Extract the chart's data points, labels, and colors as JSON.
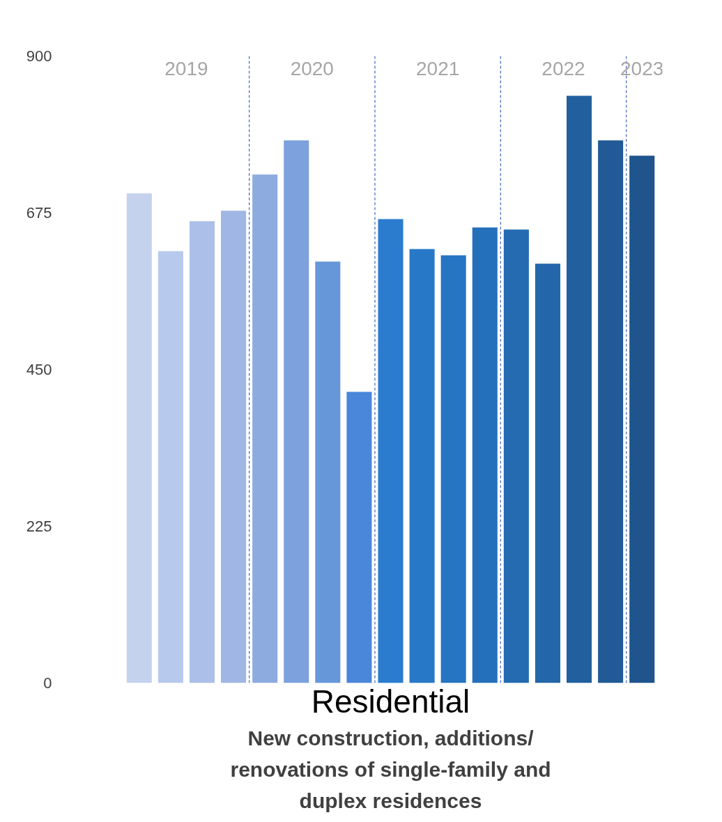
{
  "chart_data": {
    "type": "bar",
    "xlabel": "Residential",
    "categories": [
      null,
      null,
      null,
      null,
      null,
      null,
      null,
      null,
      null,
      null,
      null,
      null,
      null,
      null,
      null,
      null,
      null
    ],
    "values": [
      703,
      620,
      663,
      678,
      730,
      779,
      605,
      418,
      666,
      623,
      614,
      654,
      651,
      602,
      843,
      779,
      757
    ],
    "colors": [
      "#c5d2ee",
      "#b7c9ec",
      "#abbfe8",
      "#a0b6e4",
      "#8eabe0",
      "#7ca1dc",
      "#6697d9",
      "#4a87da",
      "#2b7ccf",
      "#2878c8",
      "#2675c2",
      "#2570bb",
      "#246bb2",
      "#2466aa",
      "#225f9f",
      "#215a96",
      "#1f548d"
    ],
    "ylim": [
      0,
      900
    ],
    "yticks": [
      0,
      225,
      450,
      675,
      900
    ],
    "grid": false,
    "annotations": [
      "2019",
      "2020",
      "2021",
      "2022",
      "2023",
      "New construction, additions/ renovations of single-family and duplex residences"
    ]
  }
}
